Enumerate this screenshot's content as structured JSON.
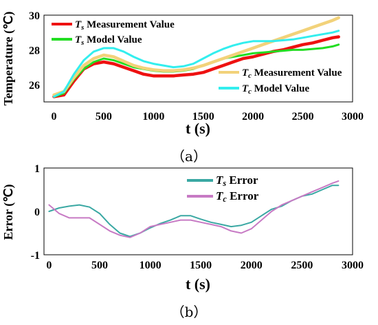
{
  "chart_data": [
    {
      "type": "line",
      "panel_label": "（a）",
      "xlabel": "t (s)",
      "ylabel": "Temperature (℃)",
      "xlim": [
        -100,
        3000
      ],
      "ylim": [
        25,
        30
      ],
      "xticks": [
        0,
        500,
        1000,
        1500,
        2000,
        2500,
        3000
      ],
      "yticks": [
        26,
        28,
        30
      ],
      "legend_position": "top-left and bottom-right",
      "series": [
        {
          "name": "Ts Measurement Value",
          "sub": "s",
          "label": "Measurement Value",
          "color": "#ee1111",
          "width": 4.5,
          "x": [
            0,
            100,
            200,
            300,
            400,
            500,
            600,
            700,
            800,
            900,
            1000,
            1100,
            1200,
            1300,
            1400,
            1500,
            1600,
            1700,
            1800,
            1900,
            2000,
            2100,
            2200,
            2300,
            2400,
            2500,
            2600,
            2700,
            2800,
            2860
          ],
          "y": [
            25.3,
            25.4,
            26.2,
            26.9,
            27.2,
            27.3,
            27.2,
            27.0,
            26.8,
            26.6,
            26.5,
            26.5,
            26.5,
            26.55,
            26.6,
            26.7,
            26.9,
            27.1,
            27.3,
            27.5,
            27.6,
            27.75,
            27.9,
            28.0,
            28.15,
            28.3,
            28.4,
            28.55,
            28.7,
            28.75
          ]
        },
        {
          "name": "Ts Model Value",
          "sub": "s",
          "label": "Model Value",
          "color": "#22dd22",
          "width": 3,
          "x": [
            0,
            100,
            200,
            300,
            400,
            500,
            600,
            700,
            800,
            900,
            1000,
            1100,
            1200,
            1300,
            1400,
            1500,
            1600,
            1700,
            1800,
            1900,
            2000,
            2100,
            2200,
            2300,
            2400,
            2500,
            2600,
            2700,
            2800,
            2860
          ],
          "y": [
            25.3,
            25.5,
            26.3,
            26.9,
            27.3,
            27.5,
            27.4,
            27.2,
            27.0,
            26.9,
            26.8,
            26.75,
            26.75,
            26.8,
            26.9,
            27.1,
            27.3,
            27.5,
            27.6,
            27.7,
            27.8,
            27.85,
            27.9,
            27.95,
            28.0,
            28.0,
            28.05,
            28.1,
            28.2,
            28.3
          ]
        },
        {
          "name": "Tc Measurement Value",
          "sub": "c",
          "label": "Measurement Value",
          "color": "#f2d27a",
          "width": 4.5,
          "x": [
            0,
            100,
            200,
            300,
            400,
            500,
            600,
            700,
            800,
            900,
            1000,
            1100,
            1200,
            1300,
            1400,
            1500,
            1600,
            1700,
            1800,
            1900,
            2000,
            2100,
            2200,
            2300,
            2400,
            2500,
            2600,
            2700,
            2800,
            2860
          ],
          "y": [
            25.4,
            25.6,
            26.4,
            27.1,
            27.5,
            27.7,
            27.6,
            27.35,
            27.1,
            26.95,
            26.85,
            26.8,
            26.8,
            26.85,
            26.95,
            27.1,
            27.3,
            27.5,
            27.7,
            27.9,
            28.1,
            28.3,
            28.5,
            28.7,
            28.9,
            29.1,
            29.3,
            29.5,
            29.7,
            29.85
          ]
        },
        {
          "name": "Tc Model Value",
          "sub": "c",
          "label": "Model Value",
          "color": "#33eeee",
          "width": 3,
          "x": [
            0,
            100,
            200,
            300,
            400,
            500,
            600,
            700,
            800,
            900,
            1000,
            1100,
            1200,
            1300,
            1400,
            1500,
            1600,
            1700,
            1800,
            1900,
            2000,
            2100,
            2200,
            2300,
            2400,
            2500,
            2600,
            2700,
            2800,
            2860
          ],
          "y": [
            25.3,
            25.6,
            26.6,
            27.4,
            27.9,
            28.1,
            28.1,
            27.9,
            27.6,
            27.35,
            27.2,
            27.1,
            27.0,
            27.05,
            27.2,
            27.5,
            27.8,
            28.05,
            28.25,
            28.4,
            28.5,
            28.5,
            28.5,
            28.55,
            28.6,
            28.7,
            28.8,
            28.9,
            29.0,
            29.1
          ]
        }
      ],
      "legend_left": [
        0,
        1
      ],
      "legend_right": [
        2,
        3
      ]
    },
    {
      "type": "line",
      "panel_label": "（b）",
      "xlabel": "t (s)",
      "ylabel": "Error (℃)",
      "xlim": [
        -50,
        3000
      ],
      "ylim": [
        -1,
        1
      ],
      "xticks": [
        0,
        500,
        1000,
        1500,
        2000,
        2500,
        3000
      ],
      "yticks": [
        -1,
        0,
        1
      ],
      "legend_position": "top-right",
      "series": [
        {
          "name": "Ts Error",
          "sub": "s",
          "label": "Error",
          "color": "#3aa8a3",
          "width": 2,
          "x": [
            0,
            100,
            200,
            300,
            400,
            500,
            600,
            700,
            800,
            900,
            1000,
            1100,
            1200,
            1300,
            1400,
            1500,
            1600,
            1700,
            1800,
            1900,
            2000,
            2100,
            2200,
            2300,
            2400,
            2500,
            2600,
            2700,
            2800,
            2860
          ],
          "y": [
            0.0,
            0.08,
            0.12,
            0.15,
            0.1,
            -0.05,
            -0.3,
            -0.5,
            -0.58,
            -0.5,
            -0.38,
            -0.28,
            -0.2,
            -0.1,
            -0.1,
            -0.18,
            -0.25,
            -0.3,
            -0.35,
            -0.32,
            -0.25,
            -0.1,
            0.05,
            0.12,
            0.25,
            0.35,
            0.4,
            0.5,
            0.6,
            0.6
          ]
        },
        {
          "name": "Tc Error",
          "sub": "c",
          "label": "Error",
          "color": "#c77ac4",
          "width": 2,
          "x": [
            0,
            100,
            200,
            300,
            400,
            500,
            600,
            700,
            800,
            900,
            1000,
            1100,
            1200,
            1300,
            1400,
            1500,
            1600,
            1700,
            1800,
            1900,
            2000,
            2100,
            2200,
            2300,
            2400,
            2500,
            2600,
            2700,
            2800,
            2860
          ],
          "y": [
            0.15,
            -0.05,
            -0.15,
            -0.15,
            -0.15,
            -0.3,
            -0.45,
            -0.55,
            -0.6,
            -0.5,
            -0.35,
            -0.3,
            -0.25,
            -0.2,
            -0.2,
            -0.25,
            -0.3,
            -0.35,
            -0.45,
            -0.5,
            -0.4,
            -0.2,
            0.0,
            0.15,
            0.25,
            0.35,
            0.45,
            0.55,
            0.65,
            0.7
          ]
        }
      ],
      "legend_left": [],
      "legend_right": [
        0,
        1
      ]
    }
  ]
}
